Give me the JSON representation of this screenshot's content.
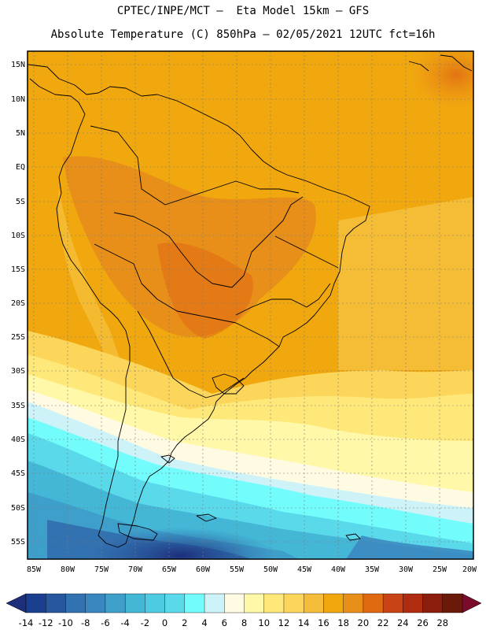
{
  "title_line1": "CPTEC/INPE/MCT –  Eta Model 15km – GFS",
  "title_line2": "Absolute Temperature (C) 850hPa – 02/05/2021 12UTC fct=16h",
  "latitude_labels": [
    "15N",
    "10N",
    "5N",
    "EQ",
    "5S",
    "10S",
    "15S",
    "20S",
    "25S",
    "30S",
    "35S",
    "40S",
    "45S",
    "50S",
    "55S"
  ],
  "longitude_labels": [
    "85W",
    "80W",
    "75W",
    "70W",
    "65W",
    "60W",
    "55W",
    "50W",
    "45W",
    "40W",
    "35W",
    "30W",
    "25W",
    "20W"
  ],
  "colorbar": {
    "labels": [
      "-14",
      "-12",
      "-10",
      "-8",
      "-6",
      "-4",
      "-2",
      "0",
      "2",
      "4",
      "6",
      "8",
      "10",
      "12",
      "14",
      "16",
      "18",
      "20",
      "22",
      "24",
      "26",
      "28"
    ],
    "colors": [
      "#1b3f8f",
      "#27589f",
      "#3372b1",
      "#3a86bf",
      "#3f9fcb",
      "#44b6d6",
      "#4ecbe2",
      "#5ad9ea",
      "#72fcfc",
      "#cdf3f8",
      "#fffbe3",
      "#fff8a8",
      "#ffe87a",
      "#fcd65a",
      "#f5be3a",
      "#f1a80e",
      "#e88f1a",
      "#df6a12",
      "#c94414",
      "#b02c10",
      "#8a1d0c",
      "#6b1a0a"
    ],
    "under_color": "#1d2f7a",
    "over_color": "#7a0b2a"
  }
}
